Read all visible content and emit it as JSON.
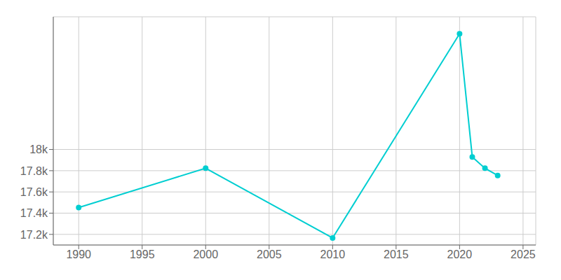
{
  "chart_data": {
    "type": "line",
    "x": [
      1990,
      2000,
      2010,
      2020,
      2021,
      2022,
      2023
    ],
    "values": [
      17453,
      17823,
      17166,
      19090,
      17930,
      17823,
      17755
    ],
    "color": "#00CED1",
    "marker": "circle",
    "xlim": [
      1988,
      2026
    ],
    "ylim": [
      17100,
      19250
    ],
    "xticks": [
      1990,
      1995,
      2000,
      2005,
      2010,
      2015,
      2020,
      2025
    ],
    "yticks": [
      {
        "value": 17200,
        "label": "17.2k"
      },
      {
        "value": 17400,
        "label": "17.4k"
      },
      {
        "value": 17600,
        "label": "17.6k"
      },
      {
        "value": 17800,
        "label": "17.8k"
      },
      {
        "value": 18000,
        "label": "18k"
      }
    ],
    "grid": true
  }
}
